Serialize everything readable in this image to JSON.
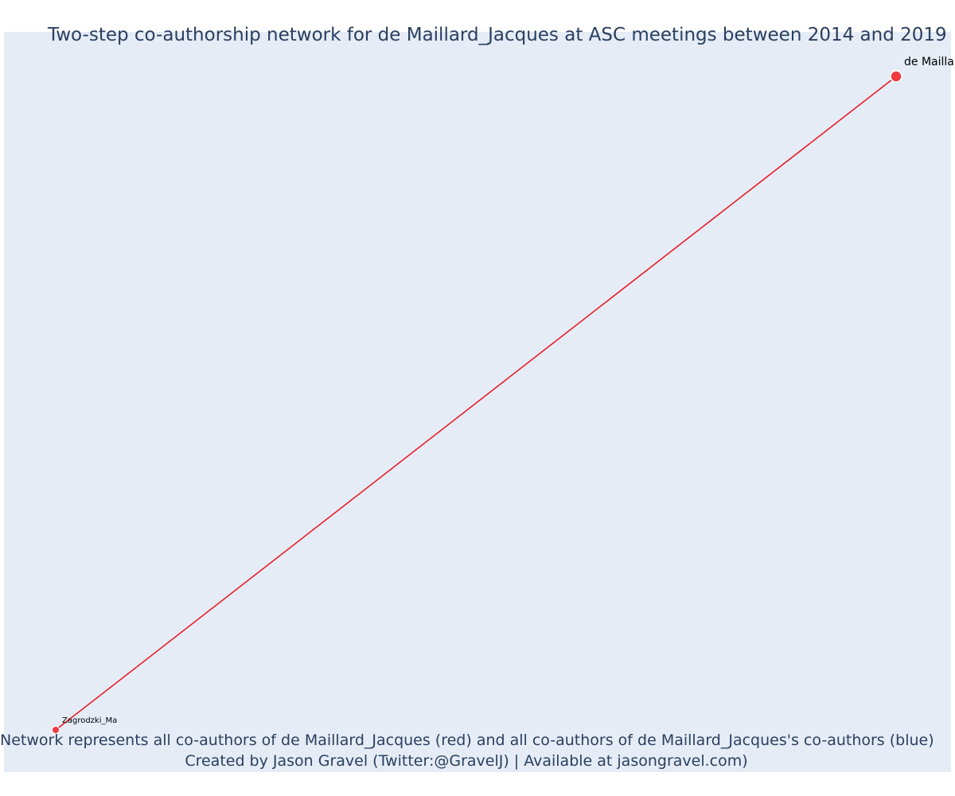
{
  "title": "Two-step co-authorship network for de Maillard_Jacques at ASC meetings between 2014 and 2019",
  "caption": {
    "line1": "Network represents all co-authors of de Maillard_Jacques (red) and all co-authors of de Maillard_Jacques's co-authors (blue)",
    "line2": "Created by Jason Gravel (Twitter:@GravelJ) | Available at jasongravel.com)"
  },
  "colors": {
    "plot_bg": "#e5ecf6",
    "edge": "#e8141c",
    "node_fill": "#ef3b3f",
    "node_stroke": "#ffffff",
    "text": "#2a3f5f"
  },
  "nodes": [
    {
      "id": "focal",
      "label": "de Mailla",
      "role": "focal"
    },
    {
      "id": "coauthor1",
      "label": "Zagrodzki_Ma",
      "role": "co-author"
    }
  ],
  "edges": [
    {
      "source": "focal",
      "target": "coauthor1"
    }
  ]
}
